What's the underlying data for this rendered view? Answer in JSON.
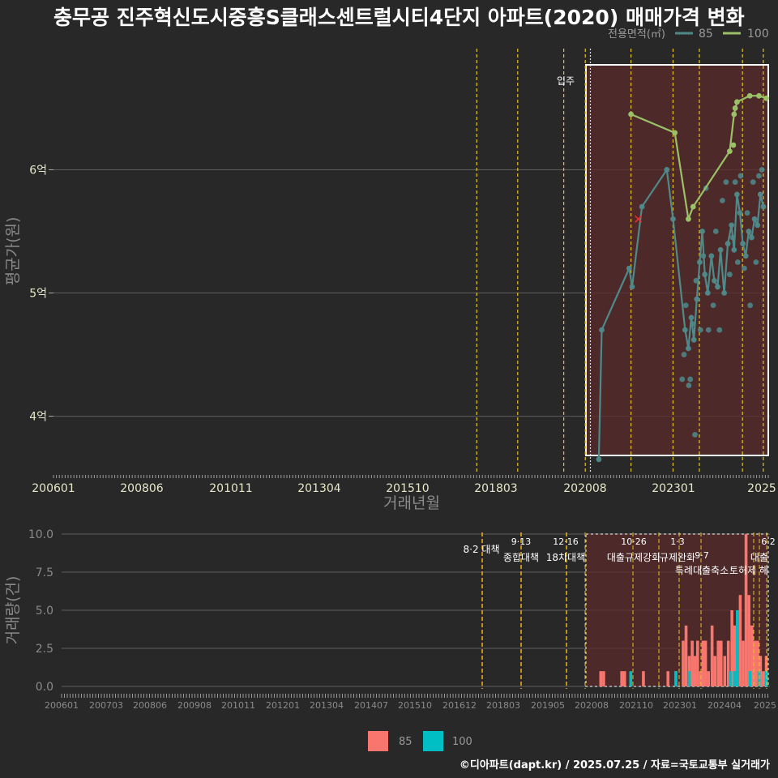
{
  "title": "충무공 진주혁신도시중흥S클래스센트럴시티4단지 아파트(2020) 매매가격 변화",
  "legend_top": {
    "label": "전용면적(㎡)",
    "items": [
      "85",
      "100"
    ]
  },
  "footer": "©디아파트(dapt.kr) / 2025.07.25 / 자료=국토교통부 실거래가",
  "colors": {
    "bg": "#282828",
    "s85_line": "#4f8a8b",
    "s100_line": "#9ac168",
    "bar85": "#f8766d",
    "bar100": "#00bfc4",
    "policy": "#e6c229",
    "shade": "#5a2a2a"
  },
  "price_chart": {
    "type": "line",
    "xlabel": "거래년월",
    "ylabel": "평균가(원)",
    "x_ticks": [
      "200601",
      "200806",
      "201011",
      "201304",
      "201510",
      "201803",
      "202008",
      "202301",
      "2025"
    ],
    "y_ticks": [
      "4억",
      "5억",
      "6억"
    ],
    "ylim": [
      3.55,
      6.95
    ],
    "xlim": [
      2006.0,
      2025.6
    ],
    "move_in_label": "입주",
    "move_in": 2020.6,
    "policy_lines": [
      2017.58,
      2018.7,
      2019.96,
      2020.55,
      2021.8,
      2022.95,
      2023.67,
      2024.85,
      2025.42
    ],
    "series_85": [
      [
        2020.92,
        3.65
      ],
      [
        2021.0,
        4.7
      ],
      [
        2021.75,
        5.2
      ],
      [
        2021.83,
        5.05
      ],
      [
        2022.1,
        5.7
      ],
      [
        2022.78,
        6.0
      ],
      [
        2022.95,
        5.6
      ],
      [
        2023.28,
        4.7
      ],
      [
        2023.37,
        4.55
      ],
      [
        2023.45,
        4.8
      ],
      [
        2023.52,
        4.62
      ],
      [
        2023.6,
        4.95
      ],
      [
        2023.68,
        5.25
      ],
      [
        2023.75,
        5.5
      ],
      [
        2023.82,
        5.15
      ],
      [
        2023.9,
        5.0
      ],
      [
        2024.0,
        5.3
      ],
      [
        2024.08,
        5.1
      ],
      [
        2024.17,
        5.05
      ],
      [
        2024.25,
        5.35
      ],
      [
        2024.35,
        5.0
      ],
      [
        2024.45,
        5.4
      ],
      [
        2024.55,
        5.55
      ],
      [
        2024.62,
        5.35
      ],
      [
        2024.7,
        5.8
      ],
      [
        2024.78,
        5.65
      ],
      [
        2024.86,
        5.4
      ],
      [
        2024.94,
        5.3
      ],
      [
        2025.02,
        5.5
      ],
      [
        2025.1,
        5.45
      ],
      [
        2025.18,
        5.6
      ],
      [
        2025.26,
        5.55
      ],
      [
        2025.34,
        5.8
      ],
      [
        2025.42,
        5.7
      ]
    ],
    "series_85_extra_points": [
      [
        2023.2,
        4.3
      ],
      [
        2023.25,
        4.5
      ],
      [
        2023.3,
        4.9
      ],
      [
        2023.38,
        4.25
      ],
      [
        2023.42,
        4.3
      ],
      [
        2023.48,
        4.75
      ],
      [
        2023.55,
        3.85
      ],
      [
        2023.58,
        5.1
      ],
      [
        2023.7,
        4.7
      ],
      [
        2023.78,
        5.3
      ],
      [
        2023.85,
        5.85
      ],
      [
        2023.92,
        4.7
      ],
      [
        2024.05,
        4.9
      ],
      [
        2024.12,
        5.5
      ],
      [
        2024.22,
        4.7
      ],
      [
        2024.3,
        5.75
      ],
      [
        2024.4,
        5.9
      ],
      [
        2024.5,
        5.15
      ],
      [
        2024.58,
        5.45
      ],
      [
        2024.65,
        5.9
      ],
      [
        2024.72,
        5.25
      ],
      [
        2024.8,
        5.95
      ],
      [
        2024.9,
        5.2
      ],
      [
        2024.98,
        5.65
      ],
      [
        2025.06,
        4.9
      ],
      [
        2025.14,
        5.9
      ],
      [
        2025.22,
        5.25
      ],
      [
        2025.3,
        5.95
      ],
      [
        2025.38,
        6.0
      ]
    ],
    "series_100": [
      [
        2021.8,
        6.45
      ],
      [
        2023.0,
        6.3
      ],
      [
        2023.37,
        5.6
      ],
      [
        2023.5,
        5.7
      ],
      [
        2024.5,
        6.15
      ],
      [
        2024.62,
        6.45
      ],
      [
        2024.7,
        6.55
      ],
      [
        2025.05,
        6.6
      ],
      [
        2025.3,
        6.6
      ],
      [
        2025.5,
        6.58
      ]
    ],
    "series_100_extra_points": [
      [
        2024.6,
        6.2
      ],
      [
        2024.65,
        6.5
      ]
    ],
    "cross_point": [
      2022.0,
      5.6
    ]
  },
  "volume_chart": {
    "type": "bar",
    "xlabel": "",
    "ylabel": "거래량(건)",
    "y_ticks": [
      "0.0",
      "2.5",
      "5.0",
      "7.5",
      "10.0"
    ],
    "ylim": [
      0,
      10
    ],
    "x_ticks": [
      "200601",
      "200703",
      "200806",
      "200908",
      "201011",
      "201201",
      "201304",
      "201407",
      "201510",
      "201612",
      "201803",
      "201905",
      "202008",
      "202110",
      "202301",
      "202404",
      "2025"
    ],
    "policy": [
      {
        "date": "8·2",
        "label": "대책"
      },
      {
        "date": "9·13",
        "label": "종합대책"
      },
      {
        "date": "12·16",
        "label": "18차대책"
      },
      {
        "date": "10·26",
        "label": "대출규제강화"
      },
      {
        "date": "1·3",
        "label": "규제완화"
      },
      {
        "date": "9·7",
        "label": "특례대출축소"
      },
      {
        "date": "",
        "label": "토허제 해"
      },
      {
        "date": "6·2",
        "label": "대출"
      }
    ],
    "bars_85": [
      [
        2020.92,
        1
      ],
      [
        2021.0,
        1
      ],
      [
        2021.5,
        1
      ],
      [
        2021.58,
        1
      ],
      [
        2022.1,
        1
      ],
      [
        2022.78,
        1
      ],
      [
        2023.0,
        1
      ],
      [
        2023.2,
        3
      ],
      [
        2023.28,
        4
      ],
      [
        2023.37,
        2
      ],
      [
        2023.45,
        3
      ],
      [
        2023.52,
        2
      ],
      [
        2023.6,
        3
      ],
      [
        2023.68,
        1
      ],
      [
        2023.75,
        3
      ],
      [
        2023.82,
        3
      ],
      [
        2023.9,
        1
      ],
      [
        2024.0,
        4
      ],
      [
        2024.08,
        2
      ],
      [
        2024.17,
        3
      ],
      [
        2024.25,
        3
      ],
      [
        2024.35,
        2
      ],
      [
        2024.45,
        3
      ],
      [
        2024.55,
        5
      ],
      [
        2024.62,
        4
      ],
      [
        2024.7,
        2
      ],
      [
        2024.78,
        6
      ],
      [
        2024.86,
        3
      ],
      [
        2024.94,
        10
      ],
      [
        2025.02,
        6
      ],
      [
        2025.1,
        4
      ],
      [
        2025.18,
        3
      ],
      [
        2025.26,
        3
      ],
      [
        2025.34,
        2
      ],
      [
        2025.42,
        1
      ],
      [
        2025.5,
        2
      ]
    ],
    "bars_100": [
      [
        2021.75,
        1
      ],
      [
        2023.0,
        1
      ],
      [
        2023.37,
        1
      ],
      [
        2024.5,
        1
      ],
      [
        2024.62,
        1
      ],
      [
        2024.7,
        5
      ],
      [
        2025.05,
        1
      ],
      [
        2025.3,
        1
      ],
      [
        2025.5,
        1
      ]
    ]
  },
  "legend_bottom": {
    "items": [
      "85",
      "100"
    ]
  }
}
